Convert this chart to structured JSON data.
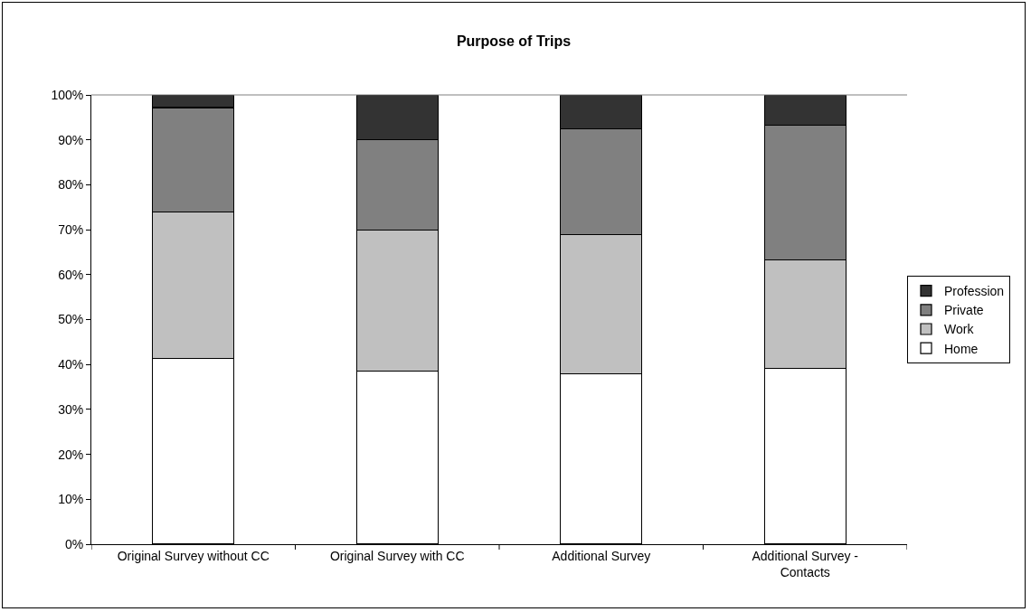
{
  "chart_data": {
    "type": "bar",
    "title": "Purpose of Trips",
    "stacked": true,
    "categories": [
      "Original Survey without CC",
      "Original Survey with CC",
      "Additional Survey",
      "Additional Survey - Contacts"
    ],
    "series": [
      {
        "name": "Home",
        "color": "#ffffff",
        "values": [
          41.3,
          38.5,
          37.9,
          39.2
        ]
      },
      {
        "name": "Work",
        "color": "#c0c0c0",
        "values": [
          32.6,
          31.5,
          31,
          24.1
        ]
      },
      {
        "name": "Private",
        "color": "#808080",
        "values": [
          23.3,
          20,
          23.6,
          30
        ]
      },
      {
        "name": "Profession",
        "color": "#333333",
        "values": [
          2.8,
          10,
          7.5,
          6.7
        ]
      }
    ],
    "ylim": [
      0,
      100
    ],
    "yticks": [
      {
        "value": 0,
        "label": "0%"
      },
      {
        "value": 10,
        "label": "10%"
      },
      {
        "value": 20,
        "label": "20%"
      },
      {
        "value": 30,
        "label": "30%"
      },
      {
        "value": 40,
        "label": "40%"
      },
      {
        "value": 50,
        "label": "50%"
      },
      {
        "value": 60,
        "label": "60%"
      },
      {
        "value": 70,
        "label": "70%"
      },
      {
        "value": 80,
        "label": "80%"
      },
      {
        "value": 90,
        "label": "90%"
      },
      {
        "value": 100,
        "label": "100%"
      }
    ],
    "grid": false,
    "legend": "right"
  }
}
